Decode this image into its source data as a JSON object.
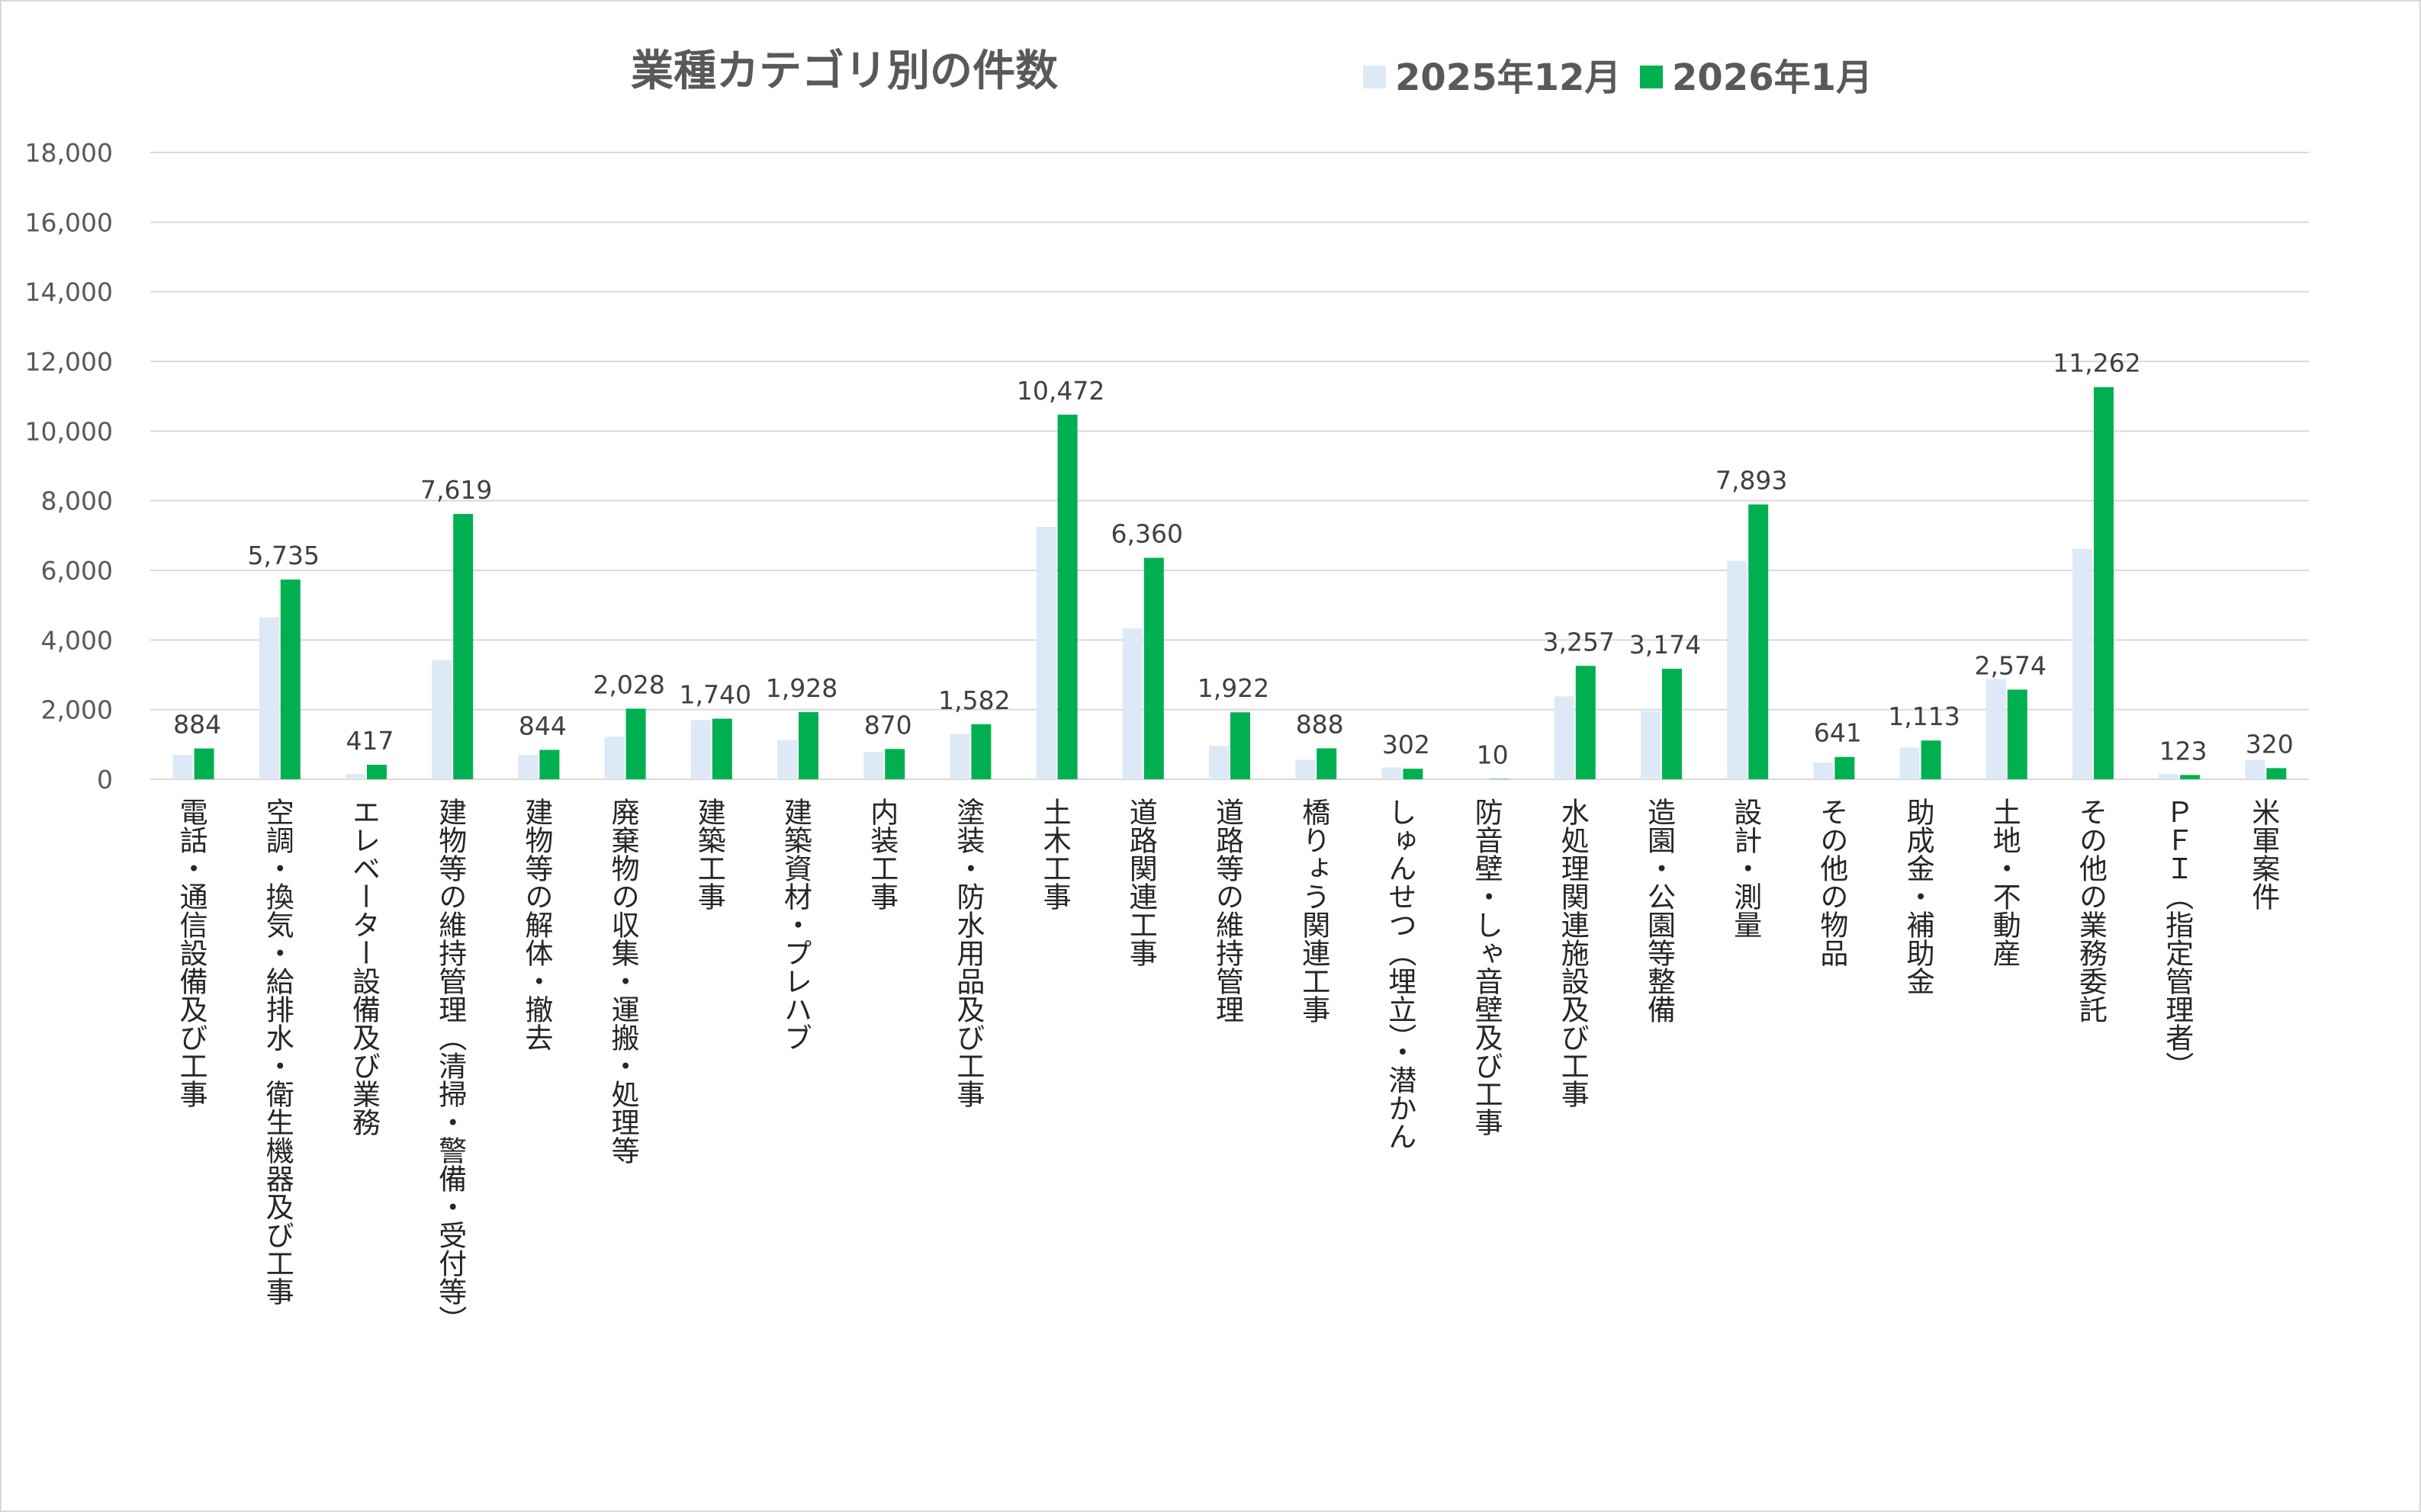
{
  "chart_data": {
    "type": "bar",
    "title": "業種カテゴリ別の件数",
    "xlabel": "",
    "ylabel": "",
    "ylim": [
      0,
      18000
    ],
    "yticks": [
      0,
      2000,
      4000,
      6000,
      8000,
      10000,
      12000,
      14000,
      16000,
      18000
    ],
    "ytick_labels": [
      "0",
      "2,000",
      "4,000",
      "6,000",
      "8,000",
      "10,000",
      "12,000",
      "14,000",
      "16,000",
      "18,000"
    ],
    "grid": true,
    "legend_position": "top-right",
    "categories": [
      "電話・通信設備及び工事",
      "空調・換気・給排水・衛生機器及び工事",
      "エレベーター設備及び業務",
      "建物等の維持管理（清掃・警備・受付等）",
      "建物等の解体・撤去",
      "廃棄物の収集・運搬・処理等",
      "建築工事",
      "建築資材・プレハブ",
      "内装工事",
      "塗装・防水用品及び工事",
      "土木工事",
      "道路関連工事",
      "道路等の維持管理",
      "橋りょう関連工事",
      "しゅんせつ（埋立）・潜かん",
      "防音壁・しゃ音壁及び工事",
      "水処理関連施設及び工事",
      "造園・公園等整備",
      "設計・測量",
      "その他の物品",
      "助成金・補助金",
      "土地・不動産",
      "その他の業務委託",
      "ＰＦＩ（指定管理者）",
      "米軍案件"
    ],
    "series": [
      {
        "name": "2025年12月",
        "color": "#dde9f6",
        "values": [
          700,
          4650,
          150,
          3420,
          700,
          1220,
          1700,
          1120,
          780,
          1300,
          7250,
          4330,
          960,
          560,
          340,
          5,
          2380,
          1960,
          6270,
          480,
          910,
          2880,
          6620,
          150,
          560
        ]
      },
      {
        "name": "2026年1月",
        "color": "#00b050",
        "values": [
          884,
          5735,
          417,
          7619,
          844,
          2028,
          1740,
          1928,
          870,
          1582,
          10472,
          6360,
          1922,
          888,
          302,
          10,
          3257,
          3174,
          7893,
          641,
          1113,
          2574,
          11262,
          123,
          320
        ],
        "data_labels": [
          "884",
          "5,735",
          "417",
          "7,619",
          "844",
          "2,028",
          "1,740",
          "1,928",
          "870",
          "1,582",
          "10,472",
          "6,360",
          "1,922",
          "888",
          "302",
          "10",
          "3,257",
          "3,174",
          "7,893",
          "641",
          "1,113",
          "2,574",
          "11,262",
          "123",
          "320"
        ]
      }
    ]
  }
}
